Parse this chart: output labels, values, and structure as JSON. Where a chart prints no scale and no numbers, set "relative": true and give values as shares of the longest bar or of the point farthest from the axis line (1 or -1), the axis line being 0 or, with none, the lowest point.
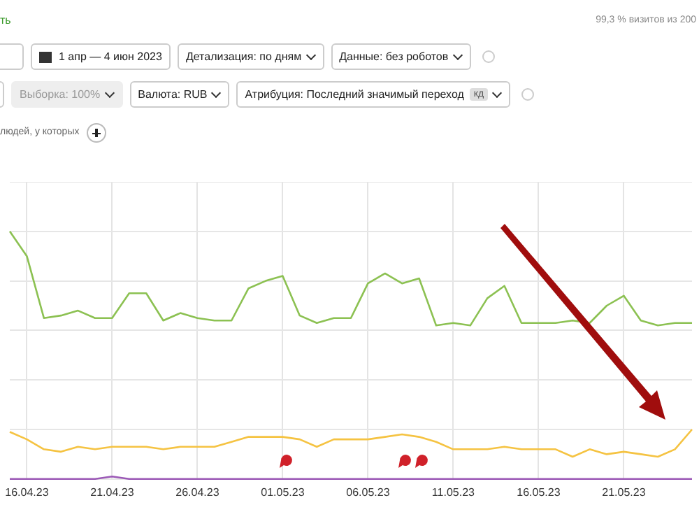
{
  "chart_data": {
    "type": "line",
    "relative": true,
    "grid": true,
    "legend": false,
    "marker": "none",
    "line_style": "solid",
    "categories": [
      null,
      "16.04.23",
      null,
      null,
      null,
      null,
      "21.04.23",
      null,
      null,
      null,
      null,
      "26.04.23",
      null,
      null,
      null,
      null,
      "01.05.23",
      null,
      null,
      null,
      null,
      "06.05.23",
      null,
      null,
      null,
      null,
      "11.05.23",
      null,
      null,
      null,
      null,
      "16.05.23",
      null,
      null,
      null,
      null,
      "21.05.23",
      null,
      null,
      null,
      null
    ],
    "series": [
      {
        "color": "#8cc152",
        "values": [
          1.0,
          0.9,
          0.65,
          0.66,
          0.68,
          0.65,
          0.65,
          0.75,
          0.75,
          0.64,
          0.67,
          0.65,
          0.64,
          0.64,
          0.77,
          0.8,
          0.82,
          0.66,
          0.63,
          0.65,
          0.65,
          0.79,
          0.83,
          0.79,
          0.81,
          0.62,
          0.63,
          0.62,
          0.73,
          0.78,
          0.63,
          0.63,
          0.63,
          0.64,
          0.63,
          0.7,
          0.74,
          0.64,
          0.62,
          0.63,
          0.63
        ]
      },
      {
        "color": "#f5c342",
        "values": [
          0.19,
          0.16,
          0.12,
          0.11,
          0.13,
          0.12,
          0.13,
          0.13,
          0.13,
          0.12,
          0.13,
          0.13,
          0.13,
          0.15,
          0.17,
          0.17,
          0.17,
          0.16,
          0.13,
          0.16,
          0.16,
          0.16,
          0.17,
          0.18,
          0.17,
          0.15,
          0.12,
          0.12,
          0.12,
          0.13,
          0.12,
          0.12,
          0.12,
          0.09,
          0.12,
          0.1,
          0.11,
          0.1,
          0.09,
          0.12,
          0.2
        ]
      },
      {
        "color": "#9b59b6",
        "values": [
          0,
          0,
          0,
          0,
          0,
          0,
          0.01,
          0,
          0,
          0,
          0,
          0,
          0,
          0,
          0,
          0,
          0,
          0,
          0,
          0,
          0,
          0,
          0,
          0,
          0,
          0,
          0,
          0,
          0,
          0,
          0,
          0,
          0,
          0,
          0,
          0,
          0,
          0,
          0,
          0,
          0
        ]
      }
    ],
    "annotations": [
      "ть",
      "99,3 % визитов из 200",
      "1 апр — 4 июн 2023",
      "Детализация: по дням",
      "Данные: без роботов",
      "Выборка: 100%",
      "Валюта: RUB",
      "Атрибуция: Последний значимый переход",
      "кд",
      "людей, у которых"
    ]
  }
}
